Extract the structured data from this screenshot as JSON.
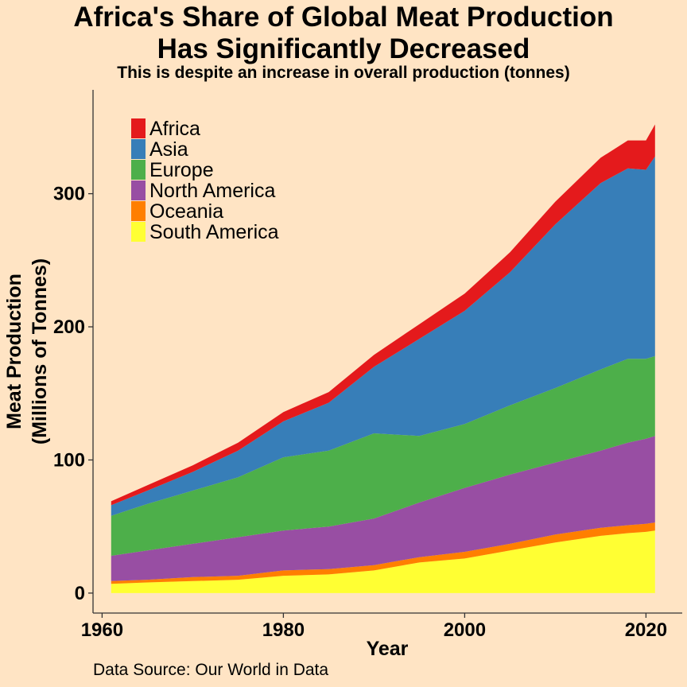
{
  "title_lines": [
    "Africa's Share of Global Meat Production",
    "Has Significantly Decreased"
  ],
  "subtitle": "This is despite an increase in overall production (tonnes)",
  "caption": "Data Source: Our World in Data",
  "chart_data": {
    "type": "area",
    "stacked": true,
    "xlabel": "Year",
    "ylabel_lines": [
      "Meat Production",
      "(Millions of Tonnes)"
    ],
    "xlim": [
      1959,
      2024
    ],
    "ylim": [
      -15,
      378
    ],
    "x_ticks": [
      1960,
      1980,
      2000,
      2020
    ],
    "y_ticks": [
      0,
      100,
      200,
      300
    ],
    "grid": false,
    "legend_position": "top-left",
    "x": [
      1961,
      1965,
      1970,
      1975,
      1980,
      1985,
      1990,
      1995,
      2000,
      2005,
      2010,
      2015,
      2018,
      2020,
      2021
    ],
    "series": [
      {
        "name": "South America",
        "color": "#FFFF33",
        "values": [
          7,
          8,
          9,
          10,
          13,
          14,
          17,
          23,
          26,
          32,
          38,
          43,
          45,
          46,
          47
        ]
      },
      {
        "name": "Oceania",
        "color": "#FF7F00",
        "values": [
          2,
          2,
          3,
          3,
          4,
          4,
          4,
          4,
          5,
          5,
          6,
          6,
          6,
          6,
          6
        ]
      },
      {
        "name": "North America",
        "color": "#984EA3",
        "values": [
          19,
          22,
          25,
          29,
          30,
          32,
          35,
          41,
          48,
          52,
          54,
          58,
          62,
          64,
          65
        ]
      },
      {
        "name": "Europe",
        "color": "#4DAF4A",
        "values": [
          30,
          35,
          40,
          45,
          55,
          57,
          64,
          50,
          48,
          52,
          56,
          61,
          63,
          60,
          60
        ]
      },
      {
        "name": "Asia",
        "color": "#377EB8",
        "values": [
          8,
          10,
          14,
          20,
          27,
          36,
          50,
          73,
          85,
          100,
          123,
          140,
          143,
          142,
          150
        ]
      },
      {
        "name": "Africa",
        "color": "#E41A1C",
        "values": [
          3,
          4,
          5,
          6,
          7,
          8,
          9,
          11,
          13,
          15,
          17,
          19,
          21,
          22,
          24
        ]
      }
    ]
  }
}
